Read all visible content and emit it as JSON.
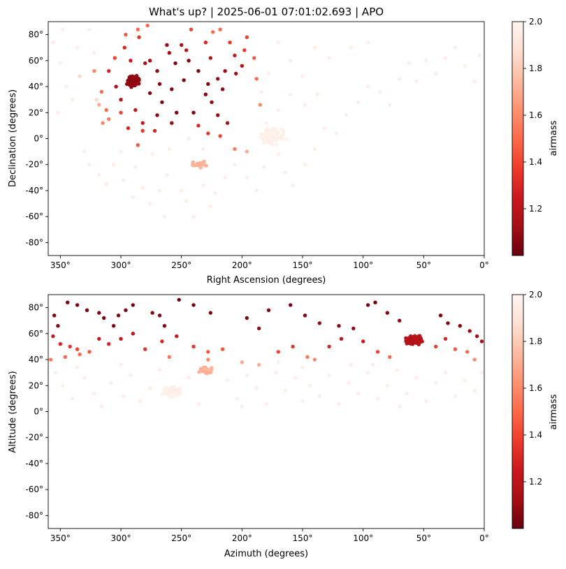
{
  "figure": {
    "title": "What's up? | 2025-06-01 07:01:02.693 | APO"
  },
  "colors": {
    "colormap": "Reds_r",
    "stops": [
      "#67000d",
      "#a50f15",
      "#cb181d",
      "#ef3b2c",
      "#fb6a4a",
      "#fc9272",
      "#fcbba1",
      "#fee0d2",
      "#fff5f0"
    ]
  },
  "chart_data": [
    {
      "type": "scatter",
      "title": "",
      "xlabel": "Right Ascension (degrees)",
      "ylabel": "Declination (degrees)",
      "xlim": [
        360,
        0
      ],
      "ylim": [
        -90,
        90
      ],
      "xticks": [
        "350°",
        "300°",
        "250°",
        "200°",
        "150°",
        "100°",
        "50°",
        "0°"
      ],
      "yticks": [
        "-80°",
        "-60°",
        "-40°",
        "-20°",
        "0°",
        "20°",
        "40°",
        "60°",
        "80°"
      ],
      "colorbar": {
        "label": "airmass",
        "range": [
          1.0,
          2.0
        ],
        "ticks": [
          "1.2",
          "1.4",
          "1.6",
          "1.8",
          "2.0"
        ]
      },
      "clusters": [
        {
          "center": [
            290,
            44
          ],
          "spread": [
            6,
            5
          ],
          "count": 220,
          "airmass": 1.08
        },
        {
          "center": [
            175,
            2
          ],
          "spread": [
            12,
            8
          ],
          "count": 90,
          "airmass": 1.97
        },
        {
          "center": [
            235,
            -20
          ],
          "spread": [
            8,
            3
          ],
          "count": 25,
          "airmass": 1.72
        }
      ],
      "points": [
        [
          305,
          62,
          1.4
        ],
        [
          297,
          70,
          1.3
        ],
        [
          285,
          78,
          1.35
        ],
        [
          262,
          72,
          1.1
        ],
        [
          255,
          58,
          1.05
        ],
        [
          244,
          60,
          1.05
        ],
        [
          236,
          52,
          1.05
        ],
        [
          228,
          42,
          1.05
        ],
        [
          248,
          45,
          1.05
        ],
        [
          258,
          38,
          1.05
        ],
        [
          268,
          42,
          1.05
        ],
        [
          276,
          35,
          1.05
        ],
        [
          266,
          28,
          1.05
        ],
        [
          254,
          20,
          1.05
        ],
        [
          240,
          20,
          1.05
        ],
        [
          225,
          28,
          1.08
        ],
        [
          220,
          18,
          1.1
        ],
        [
          212,
          12,
          1.15
        ],
        [
          205,
          50,
          1.12
        ],
        [
          198,
          68,
          1.35
        ],
        [
          196,
          78,
          1.4
        ],
        [
          190,
          62,
          1.45
        ],
        [
          188,
          46,
          1.5
        ],
        [
          185,
          26,
          1.6
        ],
        [
          310,
          52,
          1.3
        ],
        [
          316,
          36,
          1.5
        ],
        [
          312,
          22,
          1.5
        ],
        [
          300,
          20,
          1.4
        ],
        [
          288,
          22,
          1.2
        ],
        [
          282,
          12,
          1.25
        ],
        [
          294,
          8,
          1.3
        ],
        [
          282,
          6,
          1.35
        ],
        [
          272,
          6,
          1.3
        ],
        [
          286,
          -5,
          1.45
        ],
        [
          258,
          12,
          1.1
        ],
        [
          270,
          18,
          1.08
        ],
        [
          296,
          80,
          1.45
        ],
        [
          286,
          84,
          1.5
        ],
        [
          278,
          87,
          1.5
        ],
        [
          218,
          84,
          1.5
        ],
        [
          224,
          82,
          1.5
        ],
        [
          230,
          74,
          1.3
        ],
        [
          242,
          84,
          1.4
        ],
        [
          250,
          72,
          1.15
        ],
        [
          206,
          64,
          1.25
        ],
        [
          210,
          74,
          1.35
        ],
        [
          200,
          56,
          1.2
        ],
        [
          216,
          38,
          1.08
        ],
        [
          230,
          34,
          1.06
        ],
        [
          236,
          10,
          1.3
        ],
        [
          228,
          4,
          1.35
        ],
        [
          218,
          2,
          1.4
        ],
        [
          206,
          -8,
          1.55
        ],
        [
          196,
          -10,
          1.7
        ],
        [
          322,
          52,
          1.6
        ],
        [
          334,
          48,
          1.85
        ],
        [
          320,
          30,
          1.85
        ],
        [
          315,
          12,
          1.6
        ],
        [
          318,
          26,
          1.7
        ],
        [
          310,
          15,
          1.55
        ],
        [
          300,
          30,
          1.2
        ],
        [
          304,
          40,
          1.15
        ],
        [
          260,
          66,
          1.12
        ],
        [
          246,
          68,
          1.2
        ],
        [
          226,
          62,
          1.18
        ],
        [
          214,
          52,
          1.1
        ],
        [
          220,
          46,
          1.1
        ],
        [
          292,
          60,
          1.25
        ],
        [
          280,
          58,
          1.15
        ],
        [
          270,
          52,
          1.08
        ],
        [
          276,
          60,
          1.12
        ]
      ],
      "faint_points": [
        [
          350,
          58
        ],
        [
          345,
          40
        ],
        [
          340,
          30
        ],
        [
          352,
          20
        ],
        [
          330,
          -10
        ],
        [
          326,
          -20
        ],
        [
          318,
          -28
        ],
        [
          312,
          -35
        ],
        [
          306,
          -20
        ],
        [
          298,
          -32
        ],
        [
          290,
          -45
        ],
        [
          282,
          -38
        ],
        [
          276,
          -50
        ],
        [
          268,
          -40
        ],
        [
          262,
          -28
        ],
        [
          250,
          -40
        ],
        [
          246,
          -48
        ],
        [
          232,
          -36
        ],
        [
          222,
          -42
        ],
        [
          214,
          -30
        ],
        [
          206,
          -20
        ],
        [
          196,
          -30
        ],
        [
          188,
          -40
        ],
        [
          182,
          -22
        ],
        [
          170,
          -12
        ],
        [
          164,
          -26
        ],
        [
          158,
          -36
        ],
        [
          148,
          -20
        ],
        [
          140,
          -8
        ],
        [
          132,
          8
        ],
        [
          122,
          4
        ],
        [
          114,
          18
        ],
        [
          104,
          28
        ],
        [
          96,
          40
        ],
        [
          86,
          36
        ],
        [
          78,
          26
        ],
        [
          70,
          46
        ],
        [
          62,
          58
        ],
        [
          56,
          44
        ],
        [
          48,
          60
        ],
        [
          40,
          50
        ],
        [
          32,
          62
        ],
        [
          24,
          70
        ],
        [
          16,
          56
        ],
        [
          8,
          44
        ],
        [
          4,
          64
        ],
        [
          96,
          74
        ],
        [
          110,
          70
        ],
        [
          128,
          62
        ],
        [
          140,
          70
        ],
        [
          150,
          48
        ],
        [
          160,
          60
        ],
        [
          170,
          74
        ],
        [
          178,
          50
        ],
        [
          184,
          36
        ],
        [
          160,
          34
        ],
        [
          148,
          26
        ],
        [
          138,
          34
        ],
        [
          356,
          74
        ],
        [
          348,
          84
        ],
        [
          336,
          70
        ],
        [
          326,
          84
        ],
        [
          322,
          66
        ],
        [
          300,
          -10
        ],
        [
          288,
          -22
        ],
        [
          274,
          -12
        ],
        [
          260,
          -8
        ],
        [
          244,
          0
        ],
        [
          232,
          -8
        ],
        [
          226,
          -52
        ],
        [
          240,
          -60
        ],
        [
          264,
          -60
        ],
        [
          180,
          12
        ],
        [
          170,
          22
        ]
      ]
    },
    {
      "type": "scatter",
      "title": "",
      "xlabel": "Azimuth (degrees)",
      "ylabel": "Altitude (degrees)",
      "xlim": [
        360,
        0
      ],
      "ylim": [
        -90,
        90
      ],
      "xticks": [
        "350°",
        "300°",
        "250°",
        "200°",
        "150°",
        "100°",
        "50°",
        "0°"
      ],
      "yticks": [
        "-80°",
        "-60°",
        "-40°",
        "-20°",
        "0°",
        "20°",
        "40°",
        "60°",
        "80°"
      ],
      "colorbar": {
        "label": "airmass",
        "range": [
          1.0,
          2.0
        ],
        "ticks": [
          "1.2",
          "1.4",
          "1.6",
          "1.8",
          "2.0"
        ]
      },
      "clusters": [
        {
          "center": [
            58,
            55
          ],
          "spread": [
            8,
            4
          ],
          "count": 220,
          "airmass": 1.18
        },
        {
          "center": [
            258,
            15
          ],
          "spread": [
            10,
            5
          ],
          "count": 90,
          "airmass": 1.97
        },
        {
          "center": [
            230,
            32
          ],
          "spread": [
            8,
            3
          ],
          "count": 25,
          "airmass": 1.72
        }
      ],
      "points": [
        [
          355,
          74,
          1.05
        ],
        [
          352,
          66,
          1.05
        ],
        [
          344,
          84,
          1.03
        ],
        [
          336,
          82,
          1.04
        ],
        [
          328,
          78,
          1.05
        ],
        [
          318,
          76,
          1.05
        ],
        [
          314,
          72,
          1.05
        ],
        [
          306,
          66,
          1.05
        ],
        [
          302,
          74,
          1.06
        ],
        [
          296,
          78,
          1.06
        ],
        [
          290,
          82,
          1.03
        ],
        [
          274,
          76,
          1.06
        ],
        [
          268,
          74,
          1.05
        ],
        [
          264,
          66,
          1.07
        ],
        [
          252,
          86,
          1.02
        ],
        [
          240,
          82,
          1.03
        ],
        [
          226,
          76,
          1.05
        ],
        [
          196,
          72,
          1.05
        ],
        [
          186,
          64,
          1.08
        ],
        [
          178,
          78,
          1.05
        ],
        [
          160,
          82,
          1.03
        ],
        [
          148,
          74,
          1.05
        ],
        [
          136,
          68,
          1.08
        ],
        [
          120,
          66,
          1.07
        ],
        [
          108,
          64,
          1.08
        ],
        [
          96,
          82,
          1.03
        ],
        [
          90,
          84,
          1.03
        ],
        [
          80,
          76,
          1.05
        ],
        [
          70,
          70,
          1.08
        ],
        [
          36,
          74,
          1.04
        ],
        [
          30,
          68,
          1.06
        ],
        [
          20,
          66,
          1.06
        ],
        [
          12,
          62,
          1.1
        ],
        [
          6,
          58,
          1.12
        ],
        [
          2,
          54,
          1.15
        ],
        [
          356,
          58,
          1.25
        ],
        [
          350,
          52,
          1.3
        ],
        [
          342,
          50,
          1.35
        ],
        [
          336,
          48,
          1.4
        ],
        [
          326,
          46,
          1.45
        ],
        [
          318,
          56,
          1.25
        ],
        [
          310,
          52,
          1.3
        ],
        [
          300,
          56,
          1.25
        ],
        [
          290,
          60,
          1.2
        ],
        [
          280,
          48,
          1.35
        ],
        [
          266,
          54,
          1.3
        ],
        [
          254,
          58,
          1.25
        ],
        [
          240,
          50,
          1.35
        ],
        [
          228,
          46,
          1.45
        ],
        [
          216,
          48,
          1.45
        ],
        [
          200,
          38,
          1.7
        ],
        [
          186,
          36,
          1.72
        ],
        [
          170,
          46,
          1.4
        ],
        [
          158,
          50,
          1.35
        ],
        [
          146,
          42,
          1.55
        ],
        [
          128,
          50,
          1.3
        ],
        [
          118,
          56,
          1.22
        ],
        [
          100,
          54,
          1.25
        ],
        [
          88,
          46,
          1.4
        ],
        [
          78,
          42,
          1.5
        ],
        [
          40,
          50,
          1.38
        ],
        [
          32,
          56,
          1.3
        ],
        [
          24,
          48,
          1.45
        ],
        [
          14,
          46,
          1.5
        ],
        [
          8,
          40,
          1.6
        ],
        [
          358,
          40,
          1.55
        ],
        [
          346,
          42,
          1.5
        ],
        [
          334,
          44,
          1.5
        ],
        [
          260,
          42,
          1.55
        ],
        [
          228,
          40,
          1.6
        ],
        [
          140,
          40,
          1.6
        ]
      ],
      "faint_points": [
        [
          354,
          30
        ],
        [
          348,
          20
        ],
        [
          340,
          10
        ],
        [
          330,
          26
        ],
        [
          322,
          14
        ],
        [
          316,
          4
        ],
        [
          308,
          22
        ],
        [
          298,
          12
        ],
        [
          292,
          28
        ],
        [
          284,
          8
        ],
        [
          276,
          18
        ],
        [
          212,
          24
        ],
        [
          204,
          10
        ],
        [
          196,
          28
        ],
        [
          188,
          18
        ],
        [
          180,
          6
        ],
        [
          172,
          30
        ],
        [
          164,
          16
        ],
        [
          156,
          26
        ],
        [
          150,
          8
        ],
        [
          144,
          20
        ],
        [
          136,
          12
        ],
        [
          128,
          28
        ],
        [
          120,
          6
        ],
        [
          112,
          22
        ],
        [
          104,
          14
        ],
        [
          96,
          30
        ],
        [
          88,
          10
        ],
        [
          80,
          20
        ],
        [
          72,
          32
        ],
        [
          64,
          14
        ],
        [
          56,
          26
        ],
        [
          48,
          8
        ],
        [
          40,
          22
        ],
        [
          32,
          30
        ],
        [
          24,
          12
        ],
        [
          16,
          24
        ],
        [
          8,
          16
        ],
        [
          2,
          30
        ],
        [
          110,
          36
        ],
        [
          92,
          36
        ],
        [
          70,
          4
        ],
        [
          150,
          34
        ],
        [
          170,
          38
        ],
        [
          300,
          36
        ],
        [
          336,
          34
        ],
        [
          200,
          4
        ],
        [
          236,
          6
        ],
        [
          244,
          26
        ],
        [
          268,
          32
        ]
      ]
    }
  ]
}
